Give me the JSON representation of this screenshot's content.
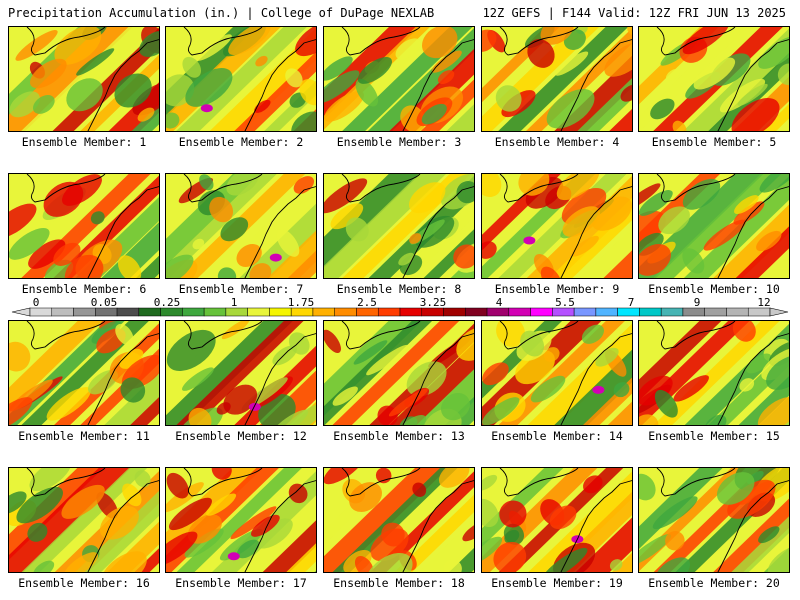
{
  "header": {
    "title": "Precipitation Accumulation (in.) | College of DuPage NEXLAB",
    "run_info": "12Z GEFS | F144 Valid: 12Z FRI JUN 13 2025"
  },
  "panels": [
    {
      "label": "Ensemble Member: 1"
    },
    {
      "label": "Ensemble Member: 2"
    },
    {
      "label": "Ensemble Member: 3"
    },
    {
      "label": "Ensemble Member: 4"
    },
    {
      "label": "Ensemble Member: 5"
    },
    {
      "label": "Ensemble Member: 6"
    },
    {
      "label": "Ensemble Member: 7"
    },
    {
      "label": "Ensemble Member: 8"
    },
    {
      "label": "Ensemble Member: 9"
    },
    {
      "label": "Ensemble Member: 10"
    },
    {
      "label": "Ensemble Member: 11"
    },
    {
      "label": "Ensemble Member: 12"
    },
    {
      "label": "Ensemble Member: 13"
    },
    {
      "label": "Ensemble Member: 14"
    },
    {
      "label": "Ensemble Member: 15"
    },
    {
      "label": "Ensemble Member: 16"
    },
    {
      "label": "Ensemble Member: 17"
    },
    {
      "label": "Ensemble Member: 18"
    },
    {
      "label": "Ensemble Member: 19"
    },
    {
      "label": "Ensemble Member: 20"
    }
  ],
  "colorbar": {
    "tick_labels": [
      "0",
      "0.05",
      "0.25",
      "1",
      "1.75",
      "2.5",
      "3.25",
      "4",
      "5.5",
      "7",
      "9",
      "12"
    ],
    "colors": [
      "#d9d9d9",
      "#bdbdbd",
      "#969696",
      "#737373",
      "#4d4d4d",
      "#1f6b1f",
      "#2d8a2d",
      "#3fa83f",
      "#66c23a",
      "#a8d83a",
      "#e8f53a",
      "#f5f500",
      "#ffd700",
      "#ffb000",
      "#ff8c00",
      "#ff6400",
      "#ff3c00",
      "#e60000",
      "#c80000",
      "#a00000",
      "#800020",
      "#a0006e",
      "#d200b4",
      "#ff00ff",
      "#b450ff",
      "#7896ff",
      "#50b4ff",
      "#00e6ff",
      "#00c8c8",
      "#46b4b4",
      "#8c8c8c",
      "#a0a0a0",
      "#b4b4b4",
      "#c8c8c8"
    ]
  }
}
